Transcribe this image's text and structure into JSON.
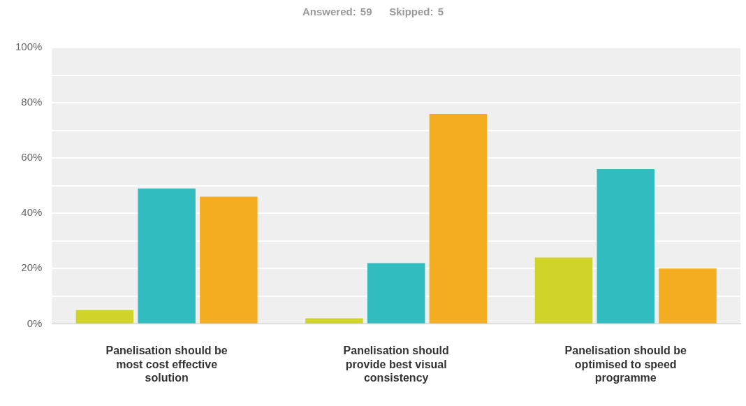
{
  "chart_data": {
    "type": "bar",
    "title": "Answered: 59    Skipped: 5",
    "categories": [
      "Panelisation should be most cost effective solution",
      "Panelisation should provide best visual consistency",
      "Panelisation should be optimised to speed programme"
    ],
    "series": [
      {
        "color": "#d0d42a",
        "values": [
          5,
          2,
          24
        ]
      },
      {
        "color": "#31bdbf",
        "values": [
          49,
          22,
          56
        ]
      },
      {
        "color": "#f4ac20",
        "values": [
          46,
          76,
          20
        ]
      }
    ],
    "ylim": [
      0,
      100
    ],
    "yticks": [
      {
        "value": 0,
        "label": "0%"
      },
      {
        "value": 10,
        "label": null
      },
      {
        "value": 20,
        "label": "20%"
      },
      {
        "value": 30,
        "label": null
      },
      {
        "value": 40,
        "label": "40%"
      },
      {
        "value": 50,
        "label": null
      },
      {
        "value": 60,
        "label": "60%"
      },
      {
        "value": 70,
        "label": null
      },
      {
        "value": 80,
        "label": "80%"
      },
      {
        "value": 90,
        "label": null
      },
      {
        "value": 100,
        "label": "100%"
      }
    ],
    "grid": "y",
    "legend": false
  }
}
